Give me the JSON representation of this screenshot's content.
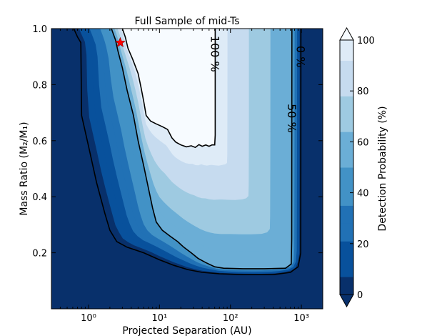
{
  "chart_data": {
    "type": "heatmap",
    "title": "Full Sample of mid-Ts",
    "xlabel": "Projected Separation (AU)",
    "ylabel": "Mass Ratio (M₂/M₁)",
    "x_scale": "log",
    "xlim": [
      0.3,
      2000
    ],
    "ylim": [
      0.0,
      1.0
    ],
    "xticks": [
      {
        "value": 1,
        "label": "10⁰"
      },
      {
        "value": 10,
        "label": "10¹"
      },
      {
        "value": 100,
        "label": "10²"
      },
      {
        "value": 1000,
        "label": "10³"
      }
    ],
    "yticks": [
      {
        "value": 0.2,
        "label": "0.2"
      },
      {
        "value": 0.4,
        "label": "0.4"
      },
      {
        "value": 0.6,
        "label": "0.6"
      },
      {
        "value": 0.8,
        "label": "0.8"
      },
      {
        "value": 1.0,
        "label": "1.0"
      }
    ],
    "colorbar": {
      "label": "Detection Probability (%)",
      "range": [
        0,
        100
      ],
      "ticks": [
        {
          "value": 0,
          "label": "0"
        },
        {
          "value": 20,
          "label": "20"
        },
        {
          "value": 40,
          "label": "40"
        },
        {
          "value": 60,
          "label": "60"
        },
        {
          "value": 80,
          "label": "80"
        },
        {
          "value": 100,
          "label": "100"
        }
      ],
      "levels": [
        0,
        7,
        14,
        21,
        28,
        35,
        42,
        50,
        57,
        64,
        71,
        78,
        85,
        92,
        100
      ],
      "colors": [
        "#08306b",
        "#08519c",
        "#08519c",
        "#2171b5",
        "#2171b5",
        "#4292c6",
        "#4292c6",
        "#6baed6",
        "#6baed6",
        "#9ecae1",
        "#9ecae1",
        "#c6dbef",
        "#c6dbef",
        "#deebf7",
        "#f7fbff"
      ]
    },
    "contours": [
      {
        "label": "0 %",
        "level": 0,
        "points": [
          [
            0.62,
            1.0
          ],
          [
            0.7,
            0.97
          ],
          [
            0.78,
            0.95
          ],
          [
            0.8,
            0.69
          ],
          [
            1.0,
            0.58
          ],
          [
            1.3,
            0.45
          ],
          [
            1.7,
            0.34
          ],
          [
            2.0,
            0.28
          ],
          [
            2.5,
            0.24
          ],
          [
            3.5,
            0.22
          ],
          [
            6,
            0.2
          ],
          [
            10,
            0.175
          ],
          [
            16,
            0.155
          ],
          [
            25,
            0.14
          ],
          [
            40,
            0.13
          ],
          [
            70,
            0.125
          ],
          [
            150,
            0.122
          ],
          [
            400,
            0.122
          ],
          [
            700,
            0.13
          ],
          [
            900,
            0.15
          ],
          [
            980,
            0.2
          ],
          [
            985,
            1.0
          ]
        ]
      },
      {
        "label": "50 %",
        "level": 50,
        "points": [
          [
            2.1,
            1.0
          ],
          [
            2.4,
            0.96
          ],
          [
            2.6,
            0.92
          ],
          [
            3.0,
            0.86
          ],
          [
            3.5,
            0.78
          ],
          [
            4.3,
            0.69
          ],
          [
            5,
            0.6
          ],
          [
            6,
            0.51
          ],
          [
            7,
            0.43
          ],
          [
            8,
            0.36
          ],
          [
            9,
            0.31
          ],
          [
            11,
            0.28
          ],
          [
            14,
            0.26
          ],
          [
            18,
            0.24
          ],
          [
            22,
            0.22
          ],
          [
            28,
            0.2
          ],
          [
            35,
            0.18
          ],
          [
            45,
            0.165
          ],
          [
            60,
            0.15
          ],
          [
            80,
            0.145
          ],
          [
            150,
            0.143
          ],
          [
            300,
            0.143
          ],
          [
            600,
            0.145
          ],
          [
            720,
            0.16
          ],
          [
            730,
            0.25
          ],
          [
            735,
            1.0
          ]
        ]
      },
      {
        "label": "100 %",
        "level": 100,
        "points": [
          [
            3.0,
            1.0
          ],
          [
            3.3,
            0.97
          ],
          [
            3.6,
            0.93
          ],
          [
            4.2,
            0.89
          ],
          [
            5,
            0.84
          ],
          [
            5.5,
            0.79
          ],
          [
            6,
            0.74
          ],
          [
            6.5,
            0.69
          ],
          [
            7.5,
            0.67
          ],
          [
            9,
            0.66
          ],
          [
            11,
            0.65
          ],
          [
            13,
            0.64
          ],
          [
            15,
            0.61
          ],
          [
            17,
            0.595
          ],
          [
            20,
            0.585
          ],
          [
            24,
            0.578
          ],
          [
            28,
            0.582
          ],
          [
            32,
            0.576
          ],
          [
            36,
            0.586
          ],
          [
            40,
            0.58
          ],
          [
            45,
            0.585
          ],
          [
            50,
            0.58
          ],
          [
            55,
            0.585
          ],
          [
            60,
            0.585
          ],
          [
            61,
            0.62
          ],
          [
            61,
            1.0
          ]
        ]
      }
    ],
    "marker": {
      "type": "star",
      "color": "#ff0000",
      "x": 2.8,
      "y": 0.95
    }
  }
}
